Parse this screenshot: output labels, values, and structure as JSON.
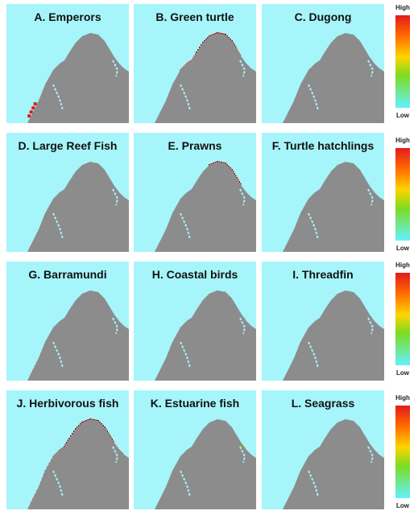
{
  "panels": [
    {
      "id": "A",
      "title": "A. Emperors",
      "theme": "emperors"
    },
    {
      "id": "B",
      "title": "B. Green turtle",
      "theme": "green-turtle"
    },
    {
      "id": "C",
      "title": "C. Dugong",
      "theme": "dugong"
    },
    {
      "id": "D",
      "title": "D. Large Reef Fish",
      "theme": "large-reef-fish"
    },
    {
      "id": "E",
      "title": "E. Prawns",
      "theme": "prawns"
    },
    {
      "id": "F",
      "title": "F. Turtle hatchlings",
      "theme": "turtle-hatchlings"
    },
    {
      "id": "G",
      "title": "G. Barramundi",
      "theme": "barramundi"
    },
    {
      "id": "H",
      "title": "H. Coastal birds",
      "theme": "coastal-birds"
    },
    {
      "id": "I",
      "title": "I. Threadfin",
      "theme": "threadfin"
    },
    {
      "id": "J",
      "title": "J. Herbivorous fish",
      "theme": "herbivorous-fish"
    },
    {
      "id": "K",
      "title": "K. Estuarine fish",
      "theme": "estuarine-fish"
    },
    {
      "id": "L",
      "title": "L. Seagrass",
      "theme": "seagrass"
    }
  ],
  "legend": {
    "high": "High",
    "low": "Low"
  },
  "colors": {
    "water": "#a6f5fb",
    "land": "#8c8c8c",
    "scale": [
      "#63f0ff",
      "#7ddc1f",
      "#ffd400",
      "#ff6a00",
      "#e31a1c",
      "#a00000"
    ]
  }
}
